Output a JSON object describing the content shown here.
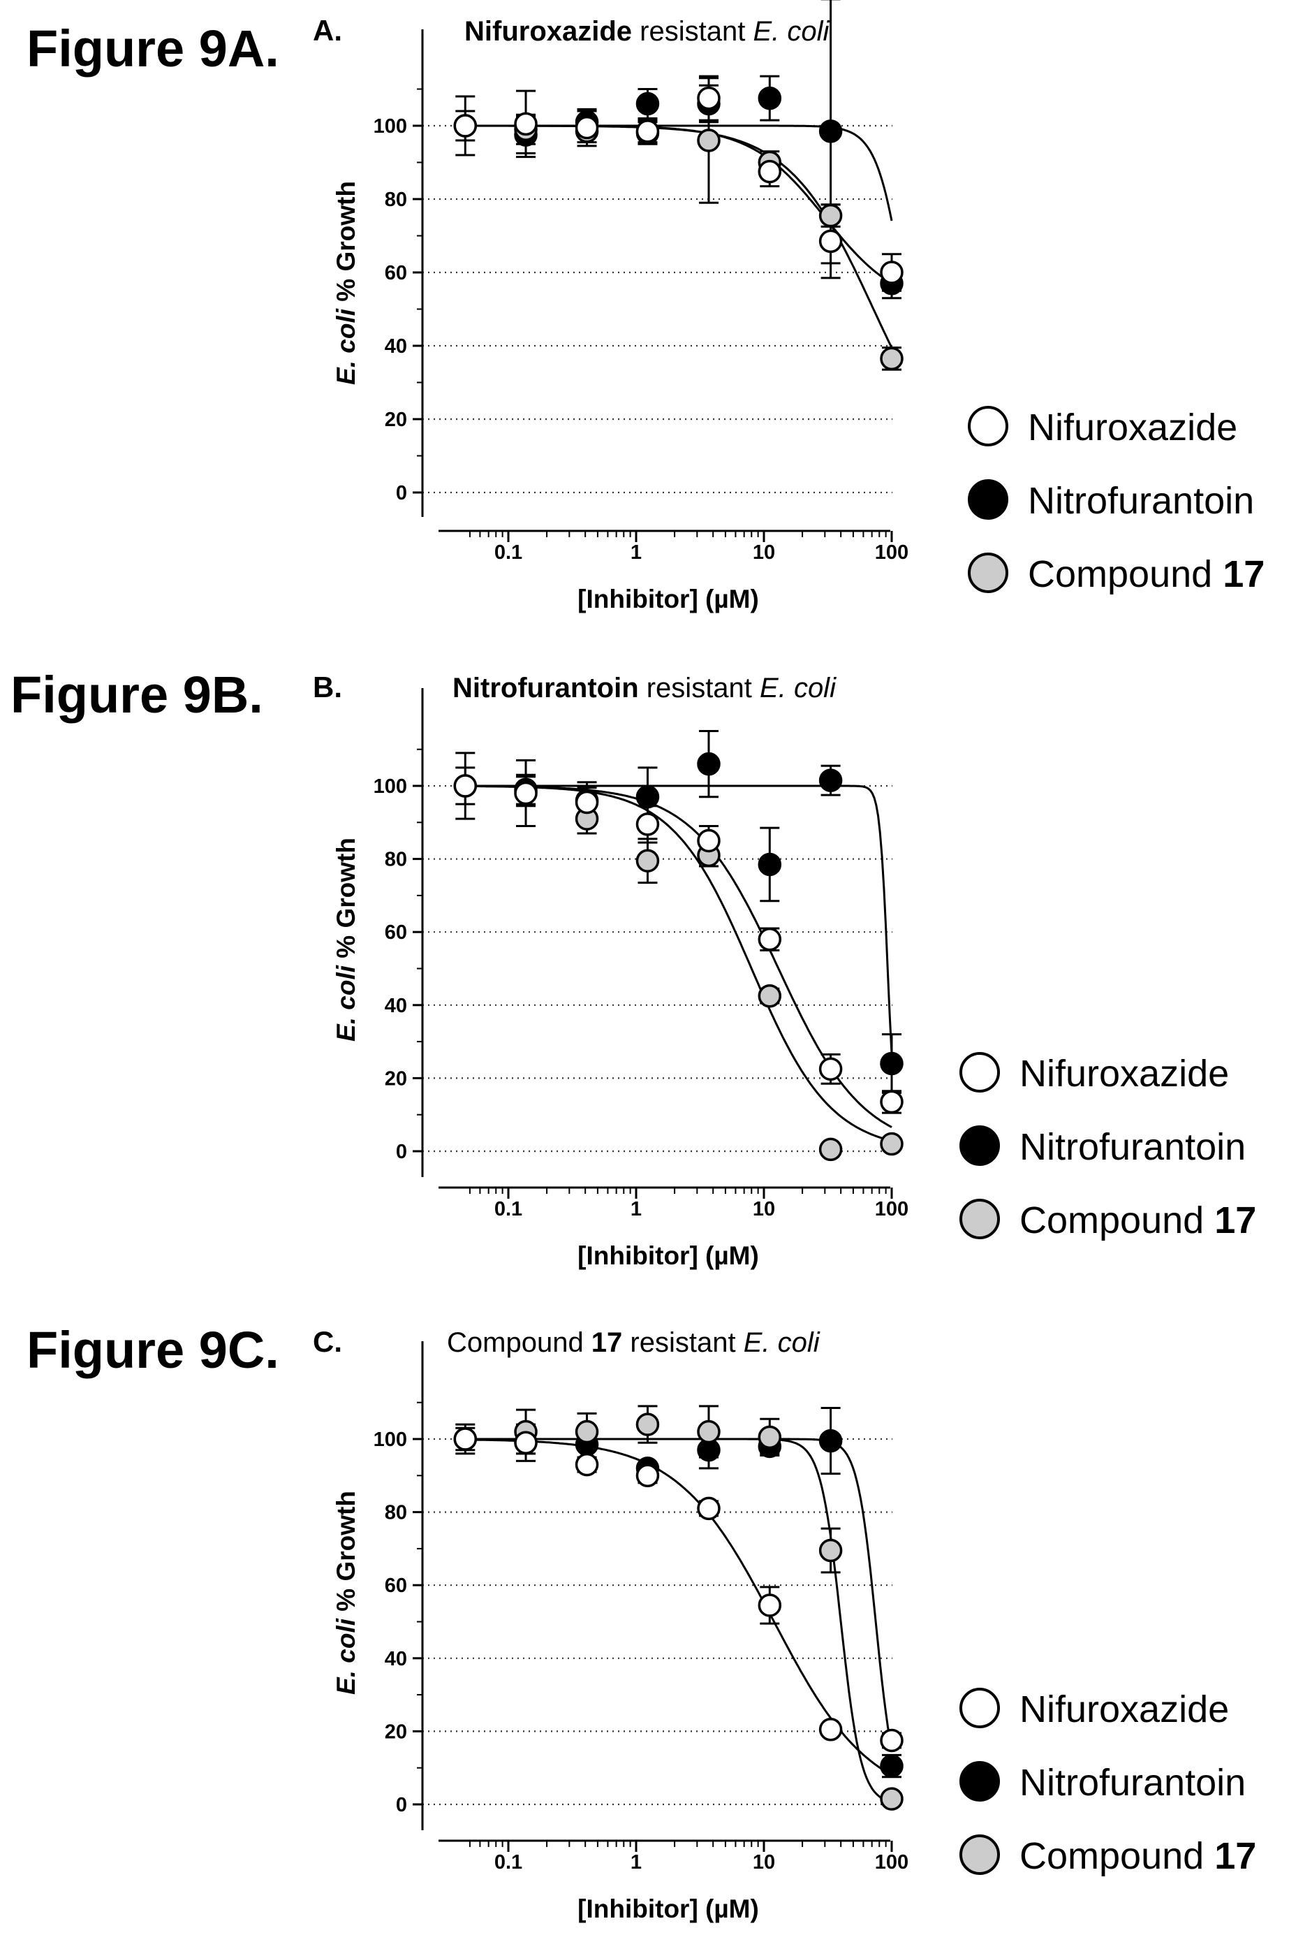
{
  "figure_labels": [
    "Figure 9A.",
    "Figure 9B.",
    "Figure 9C."
  ],
  "legend": {
    "entries": [
      {
        "series": "nifuroxazide",
        "label": "Nifuroxazide",
        "bold": ""
      },
      {
        "series": "nitrofurantoin",
        "label": "Nitrofurantoin",
        "bold": ""
      },
      {
        "series": "compound17",
        "label": "Compound ",
        "bold": "17"
      }
    ]
  },
  "colors": {
    "nifuroxazide": "#ffffff",
    "nitrofurantoin": "#000000",
    "compound17": "#cccccc",
    "gridline": "#333333",
    "axis": "#000000"
  },
  "chart_data": [
    {
      "type": "scatter",
      "panel": "A.",
      "title": {
        "bold": "Nifuroxazide",
        "plain": " resistant ",
        "italic": "E. coli"
      },
      "xlabel": "[Inhibitor] (µM)",
      "ylabel": {
        "italic": "E. coli",
        "plain": " % Growth"
      },
      "x_scale": "log",
      "xlim": [
        0.04,
        120
      ],
      "ylim": [
        -5,
        115
      ],
      "xticks": [
        {
          "value": 0.1,
          "label": "0.1"
        },
        {
          "value": 1,
          "label": "1"
        },
        {
          "value": 10,
          "label": "10"
        },
        {
          "value": 100,
          "label": "100"
        }
      ],
      "yticks": [
        0,
        20,
        40,
        60,
        80,
        100
      ],
      "grid": "horizontal dotted",
      "series": [
        {
          "key": "nitrofurantoin",
          "name": "Nitrofurantoin",
          "x": [
            0.137,
            0.412,
            1.23,
            3.7,
            11.1,
            33.3,
            100
          ],
          "y": [
            97.5,
            101,
            106,
            106,
            107.5,
            98.5,
            57
          ],
          "err": [
            5,
            3,
            4,
            5,
            6,
            36,
            4
          ],
          "fit": {
            "bottom": 0,
            "top": 100,
            "ic50": 130,
            "hill": 4
          }
        },
        {
          "key": "compound17",
          "name": "Compound 17",
          "x": [
            0.046,
            0.137,
            0.412,
            1.23,
            3.7,
            11.1,
            33.3,
            100
          ],
          "y": [
            100,
            99,
            98.5,
            98,
            96,
            90,
            75.5,
            36.5
          ],
          "err": [
            4,
            4,
            3,
            3,
            17,
            3,
            3,
            3
          ],
          "fit": {
            "bottom": 0,
            "top": 100,
            "ic50": 72,
            "hill": 1.3
          }
        },
        {
          "key": "nifuroxazide",
          "name": "Nifuroxazide",
          "x": [
            0.046,
            0.137,
            0.412,
            1.23,
            3.7,
            11.1,
            33.3,
            100
          ],
          "y": [
            100,
            100.5,
            99.5,
            98.5,
            107.5,
            87.5,
            68.5,
            60
          ],
          "err": [
            8,
            9,
            5,
            3,
            6,
            4,
            10,
            5
          ],
          "fit": {
            "bottom": 50,
            "top": 100,
            "ic50": 30,
            "hill": 1.5
          }
        }
      ]
    },
    {
      "type": "scatter",
      "panel": "B.",
      "title": {
        "bold": "Nitrofurantoin",
        "plain": " resistant ",
        "italic": "E. coli"
      },
      "xlabel": "[Inhibitor] (µM)",
      "ylabel": {
        "italic": "E. coli",
        "plain": " % Growth"
      },
      "x_scale": "log",
      "xlim": [
        0.04,
        120
      ],
      "ylim": [
        -5,
        115
      ],
      "xticks": [
        {
          "value": 0.1,
          "label": "0.1"
        },
        {
          "value": 1,
          "label": "1"
        },
        {
          "value": 10,
          "label": "10"
        },
        {
          "value": 100,
          "label": "100"
        }
      ],
      "yticks": [
        0,
        20,
        40,
        60,
        80,
        100
      ],
      "grid": "horizontal dotted",
      "series": [
        {
          "key": "nitrofurantoin",
          "name": "Nitrofurantoin",
          "x": [
            0.137,
            0.412,
            1.23,
            3.7,
            11.1,
            33.3,
            100
          ],
          "y": [
            99,
            96,
            97,
            106,
            78.5,
            101.5,
            24
          ],
          "err": [
            4,
            5,
            8,
            9,
            10,
            4,
            8
          ],
          "fit": {
            "bottom": 0,
            "top": 100,
            "ic50": 93,
            "hill": 14
          }
        },
        {
          "key": "compound17",
          "name": "Compound 17",
          "x": [
            0.046,
            0.137,
            0.412,
            1.23,
            3.7,
            11.1,
            33.3,
            100
          ],
          "y": [
            100,
            98.5,
            91,
            79.5,
            81,
            42.5,
            0.5,
            2
          ],
          "err": [
            5,
            4,
            4,
            6,
            3,
            2,
            1,
            1
          ],
          "fit": {
            "bottom": 0,
            "top": 100,
            "ic50": 8,
            "hill": 1.4
          }
        },
        {
          "key": "nifuroxazide",
          "name": "Nifuroxazide",
          "x": [
            0.046,
            0.137,
            0.412,
            1.23,
            3.7,
            11.1,
            33.3,
            100
          ],
          "y": [
            100,
            98,
            95.5,
            89.5,
            85,
            58,
            22.5,
            13.5
          ],
          "err": [
            9,
            9,
            4,
            5,
            4,
            3,
            4,
            3
          ],
          "fit": {
            "bottom": 0,
            "top": 100,
            "ic50": 13,
            "hill": 1.3
          }
        }
      ]
    },
    {
      "type": "scatter",
      "panel": "C.",
      "title": {
        "plain": "Compound ",
        "bold": "17",
        "plain2": " resistant ",
        "italic": "E. coli"
      },
      "xlabel": "[Inhibitor] (µM)",
      "ylabel": {
        "italic": "E. coli",
        "plain": " % Growth"
      },
      "x_scale": "log",
      "xlim": [
        0.04,
        120
      ],
      "ylim": [
        -5,
        115
      ],
      "xticks": [
        {
          "value": 0.1,
          "label": "0.1"
        },
        {
          "value": 1,
          "label": "1"
        },
        {
          "value": 10,
          "label": "10"
        },
        {
          "value": 100,
          "label": "100"
        }
      ],
      "yticks": [
        0,
        20,
        40,
        60,
        80,
        100
      ],
      "grid": "horizontal dotted",
      "series": [
        {
          "key": "nitrofurantoin",
          "name": "Nitrofurantoin",
          "x": [
            0.046,
            0.137,
            0.412,
            1.23,
            3.7,
            11.1,
            33.3,
            100
          ],
          "y": [
            100,
            99,
            98.5,
            92,
            97,
            98,
            99.5,
            10.5
          ],
          "err": [
            3,
            3,
            4,
            1,
            5,
            2,
            9,
            3
          ],
          "fit": {
            "bottom": 0,
            "top": 100,
            "ic50": 75,
            "hill": 6
          }
        },
        {
          "key": "compound17",
          "name": "Compound 17",
          "x": [
            0.137,
            0.412,
            1.23,
            3.7,
            11.1,
            33.3,
            100
          ],
          "y": [
            102,
            102,
            104,
            102,
            100.5,
            69.5,
            1.5
          ],
          "err": [
            6,
            5,
            5,
            7,
            5,
            6,
            1
          ],
          "fit": {
            "bottom": 0,
            "top": 100,
            "ic50": 40,
            "hill": 5.5
          }
        },
        {
          "key": "nifuroxazide",
          "name": "Nifuroxazide",
          "x": [
            0.046,
            0.137,
            0.412,
            1.23,
            3.7,
            11.1,
            33.3,
            100
          ],
          "y": [
            100,
            99,
            93,
            90,
            81,
            54.5,
            20.5,
            17.5
          ],
          "err": [
            4,
            5,
            2,
            2,
            2,
            5,
            1,
            2
          ],
          "fit": {
            "bottom": 0,
            "top": 100,
            "ic50": 12,
            "hill": 1.15
          }
        }
      ]
    }
  ]
}
